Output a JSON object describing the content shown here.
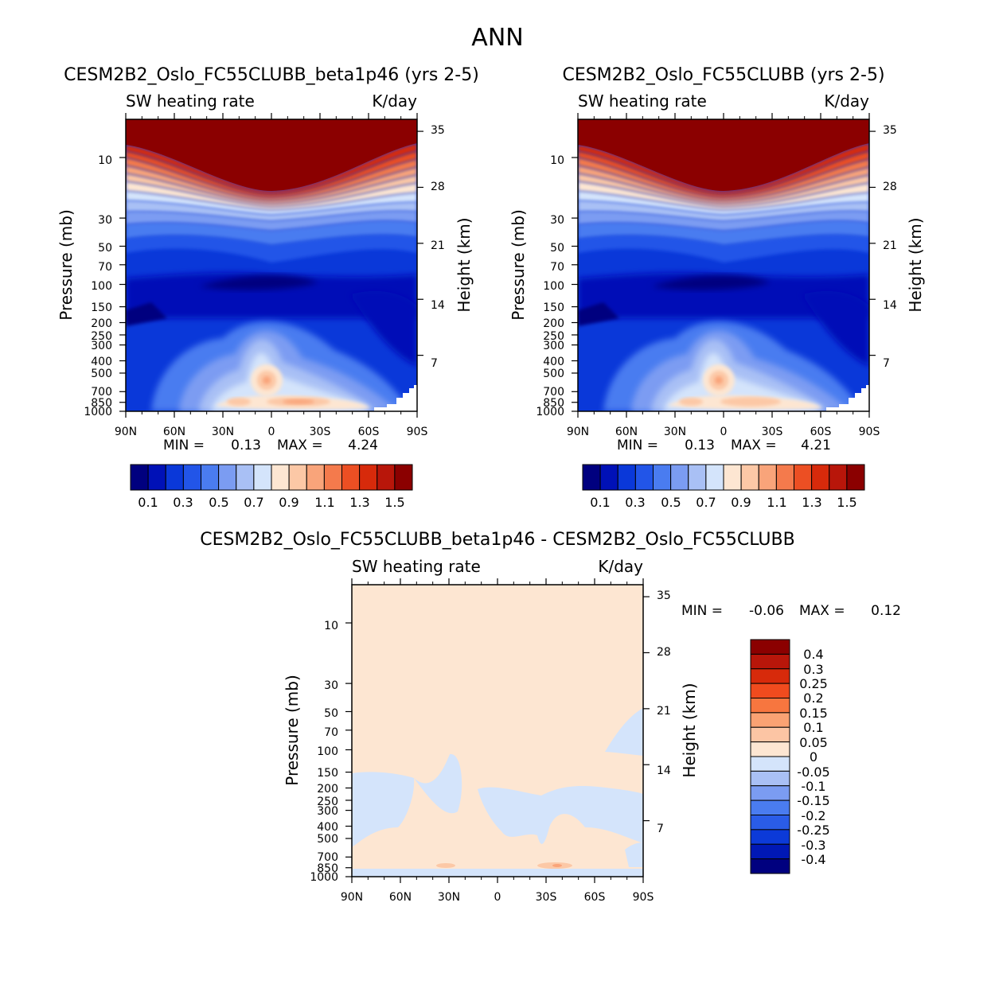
{
  "figure_title": "ANN",
  "chart_data": [
    {
      "type": "heatmap",
      "subtype": "filled-contour",
      "title": "CESM2B2_Oslo_FC55CLUBB_beta1p46 (yrs 2-5)",
      "left_subtitle": "SW heating rate",
      "right_subtitle": "K/day",
      "xlabel": "",
      "ylabel": "Pressure (mb)",
      "ylabel_right": "Height (km)",
      "x_ticks": [
        "90N",
        "60N",
        "30N",
        "0",
        "30S",
        "60S",
        "90S"
      ],
      "y_ticks": [
        "10",
        "30",
        "50",
        "70",
        "100",
        "150",
        "200",
        "250",
        "300",
        "400",
        "500",
        "700",
        "850",
        "1000"
      ],
      "y_ticks_right": [
        "35",
        "28",
        "21",
        "14",
        "7"
      ],
      "ylim": [
        1000,
        5
      ],
      "min_label": "MIN =",
      "min_value": "0.13",
      "max_label": "MAX =",
      "max_value": "4.24",
      "colorbar_labels": [
        "0.1",
        "0.3",
        "0.5",
        "0.7",
        "0.9",
        "1.1",
        "1.3",
        "1.5"
      ]
    },
    {
      "type": "heatmap",
      "subtype": "filled-contour",
      "title": "CESM2B2_Oslo_FC55CLUBB (yrs 2-5)",
      "left_subtitle": "SW heating rate",
      "right_subtitle": "K/day",
      "xlabel": "",
      "ylabel": "Pressure (mb)",
      "ylabel_right": "Height (km)",
      "x_ticks": [
        "90N",
        "60N",
        "30N",
        "0",
        "30S",
        "60S",
        "90S"
      ],
      "y_ticks": [
        "10",
        "30",
        "50",
        "70",
        "100",
        "150",
        "200",
        "250",
        "300",
        "400",
        "500",
        "700",
        "850",
        "1000"
      ],
      "y_ticks_right": [
        "35",
        "28",
        "21",
        "14",
        "7"
      ],
      "ylim": [
        1000,
        5
      ],
      "min_label": "MIN =",
      "min_value": "0.13",
      "max_label": "MAX =",
      "max_value": "4.21",
      "colorbar_labels": [
        "0.1",
        "0.3",
        "0.5",
        "0.7",
        "0.9",
        "1.1",
        "1.3",
        "1.5"
      ]
    },
    {
      "type": "heatmap",
      "subtype": "filled-contour-difference",
      "title": "CESM2B2_Oslo_FC55CLUBB_beta1p46 - CESM2B2_Oslo_FC55CLUBB",
      "left_subtitle": "SW heating rate",
      "right_subtitle": "K/day",
      "xlabel": "",
      "ylabel": "Pressure (mb)",
      "ylabel_right": "Height (km)",
      "x_ticks": [
        "90N",
        "60N",
        "30N",
        "0",
        "30S",
        "60S",
        "90S"
      ],
      "y_ticks": [
        "10",
        "30",
        "50",
        "70",
        "100",
        "150",
        "200",
        "250",
        "300",
        "400",
        "500",
        "700",
        "850",
        "1000"
      ],
      "y_ticks_right": [
        "35",
        "28",
        "21",
        "14",
        "7"
      ],
      "ylim": [
        1000,
        5
      ],
      "min_label": "MIN =",
      "min_value": "-0.06",
      "max_label": "MAX =",
      "max_value": "0.12",
      "colorbar_labels": [
        "0.4",
        "0.3",
        "0.25",
        "0.2",
        "0.15",
        "0.1",
        "0.05",
        "0",
        "-0.05",
        "-0.1",
        "-0.15",
        "-0.2",
        "-0.25",
        "-0.3",
        "-0.4"
      ]
    }
  ],
  "colors": {
    "abs_scale": [
      "#00007f",
      "#0011b7",
      "#0a38d9",
      "#2255e8",
      "#4a7cf0",
      "#7b9cf2",
      "#a9c0f5",
      "#d4e4fb",
      "#fde6d2",
      "#fcc8a6",
      "#f9a47a",
      "#f47a4c",
      "#ec4f23",
      "#d72a0b",
      "#b8160a",
      "#8b0000"
    ],
    "diff_scale": [
      "#8b0000",
      "#b8160a",
      "#d72a0b",
      "#f04b1e",
      "#f7763f",
      "#faa273",
      "#fcc5a4",
      "#fde6d2",
      "#d4e4fb",
      "#a9c0f5",
      "#7b9cf2",
      "#4a7cf0",
      "#2a5ce8",
      "#0c3ad8",
      "#0018b5",
      "#00007f"
    ]
  }
}
